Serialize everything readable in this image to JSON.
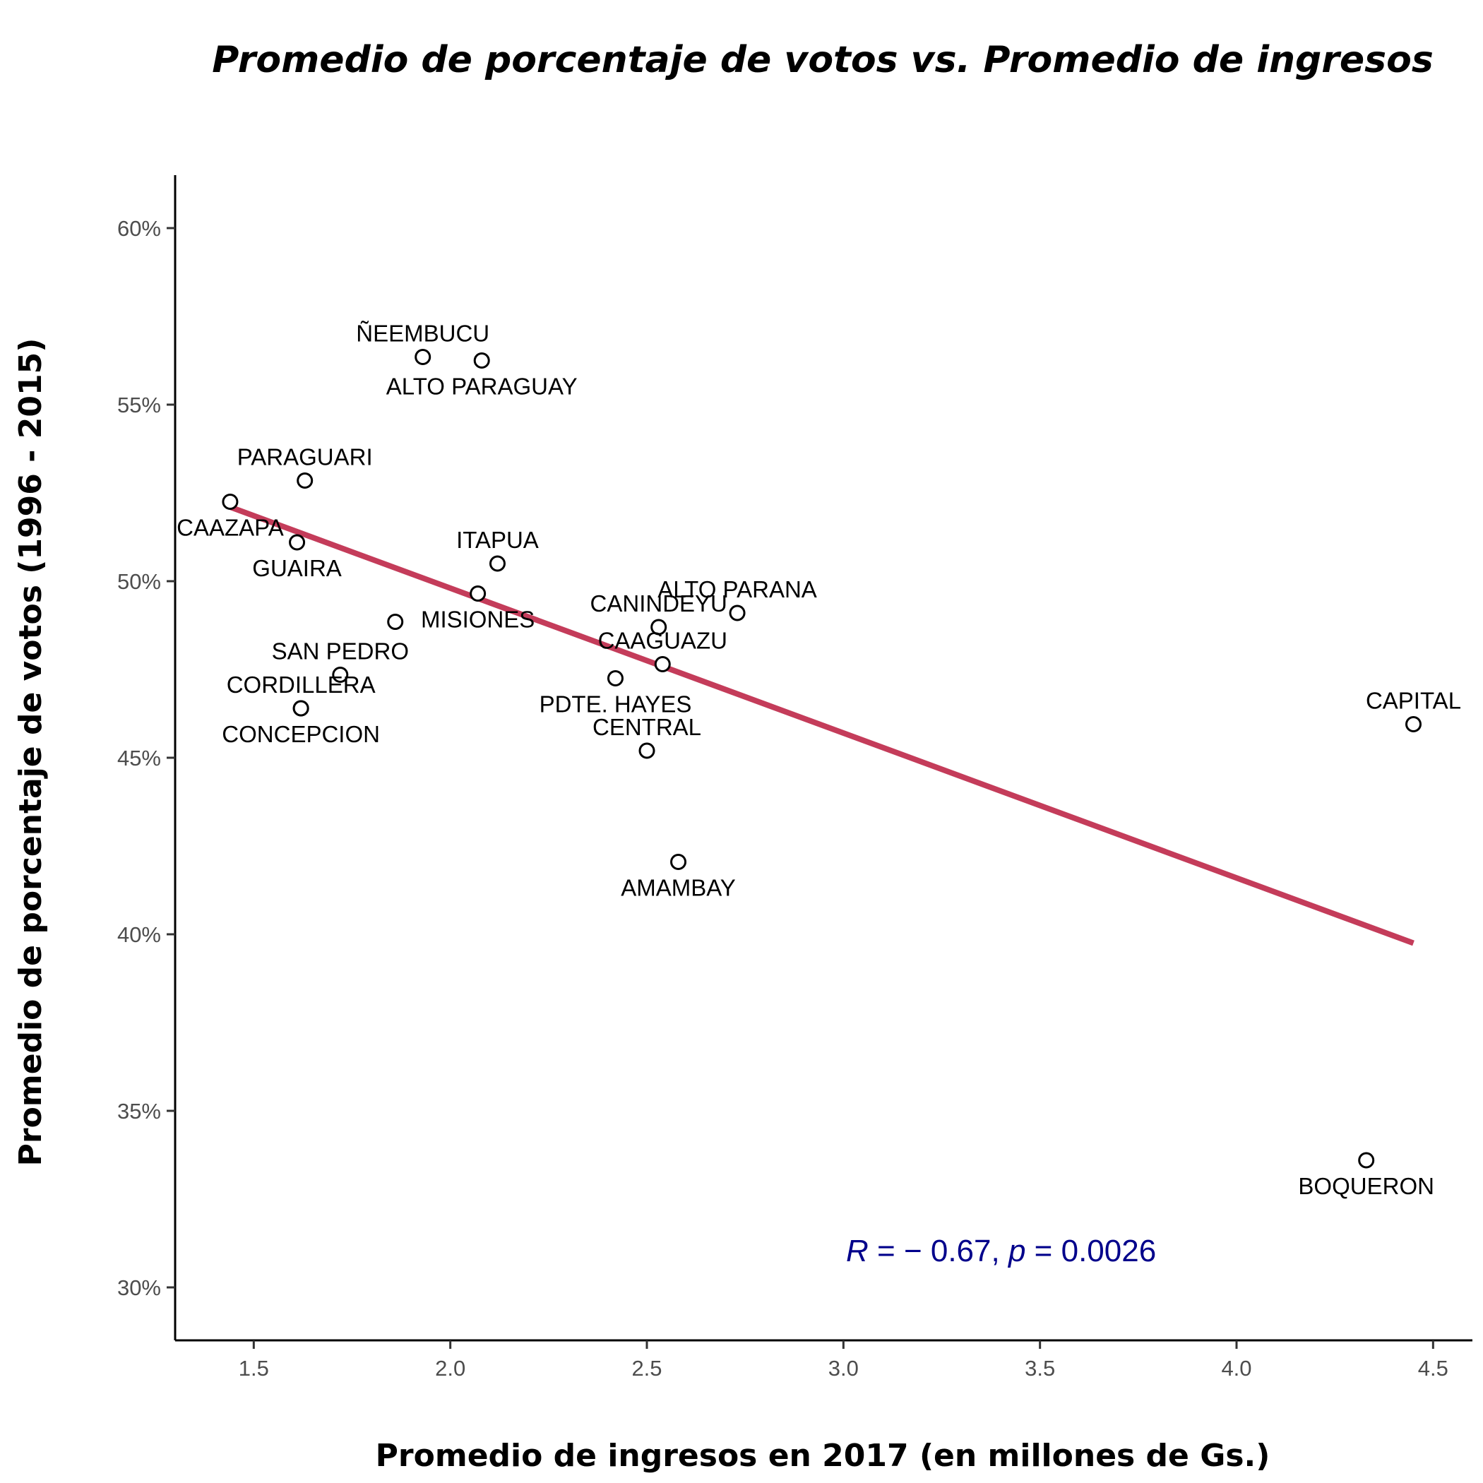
{
  "chart_data": {
    "type": "scatter",
    "title": "Promedio de porcentaje de votos vs. Promedio de ingresos",
    "xlabel": "Promedio de ingresos en 2017 (en millones de Gs.)",
    "ylabel": "Promedio de porcentaje de votos (1996 - 2015)",
    "xlim": [
      1.3,
      4.6
    ],
    "ylim": [
      28.5,
      61.5
    ],
    "x_ticks": [
      1.5,
      2.0,
      2.5,
      3.0,
      3.5,
      4.0,
      4.5
    ],
    "x_tick_labels": [
      "1.5",
      "2.0",
      "2.5",
      "3.0",
      "3.5",
      "4.0",
      "4.5"
    ],
    "y_ticks": [
      30,
      35,
      40,
      45,
      50,
      55,
      60
    ],
    "y_tick_labels": [
      "30%",
      "35%",
      "40%",
      "45%",
      "50%",
      "55%",
      "60%"
    ],
    "grid": false,
    "legend": "none",
    "points": [
      {
        "label": "ÑEEMBUCU",
        "x": 1.93,
        "y": 56.35,
        "label_pos": "above"
      },
      {
        "label": "ALTO PARAGUAY",
        "x": 2.08,
        "y": 56.25,
        "label_pos": "below"
      },
      {
        "label": "PARAGUARI",
        "x": 1.63,
        "y": 52.85,
        "label_pos": "above"
      },
      {
        "label": "CAAZAPA",
        "x": 1.44,
        "y": 52.25,
        "label_pos": "below"
      },
      {
        "label": "GUAIRA",
        "x": 1.61,
        "y": 51.1,
        "label_pos": "below"
      },
      {
        "label": "ITAPUA",
        "x": 2.12,
        "y": 50.5,
        "label_pos": "above"
      },
      {
        "label": "MISIONES",
        "x": 2.07,
        "y": 49.65,
        "label_pos": "below"
      },
      {
        "label": "",
        "x": 1.86,
        "y": 48.85,
        "label_pos": "none"
      },
      {
        "label": "ALTO PARANA",
        "x": 2.73,
        "y": 49.1,
        "label_pos": "above"
      },
      {
        "label": "CANINDEYU",
        "x": 2.53,
        "y": 48.7,
        "label_pos": "above"
      },
      {
        "label": "CAAGUAZU",
        "x": 2.54,
        "y": 47.65,
        "label_pos": "above"
      },
      {
        "label": "PDTE. HAYES",
        "x": 2.42,
        "y": 47.25,
        "label_pos": "below"
      },
      {
        "label": "SAN PEDRO",
        "x": 1.72,
        "y": 47.35,
        "label_pos": "above"
      },
      {
        "label": "CORDILLERA",
        "x": 1.62,
        "y": 46.4,
        "label_pos": "above"
      },
      {
        "label": "CONCEPCION",
        "x": 1.62,
        "y": 46.4,
        "label_pos": "below"
      },
      {
        "label": "CENTRAL",
        "x": 2.5,
        "y": 45.2,
        "label_pos": "above"
      },
      {
        "label": "CAPITAL",
        "x": 4.45,
        "y": 45.95,
        "label_pos": "above"
      },
      {
        "label": "AMAMBAY",
        "x": 2.58,
        "y": 42.05,
        "label_pos": "below"
      },
      {
        "label": "BOQUERON",
        "x": 4.33,
        "y": 33.6,
        "label_pos": "below"
      }
    ],
    "trend_line": {
      "x": [
        1.44,
        4.45
      ],
      "y": [
        52.1,
        39.75
      ],
      "color": "#c43c5a"
    },
    "annotation": {
      "R": "− 0.67",
      "p": "0.0026",
      "color": "#00008b"
    }
  }
}
